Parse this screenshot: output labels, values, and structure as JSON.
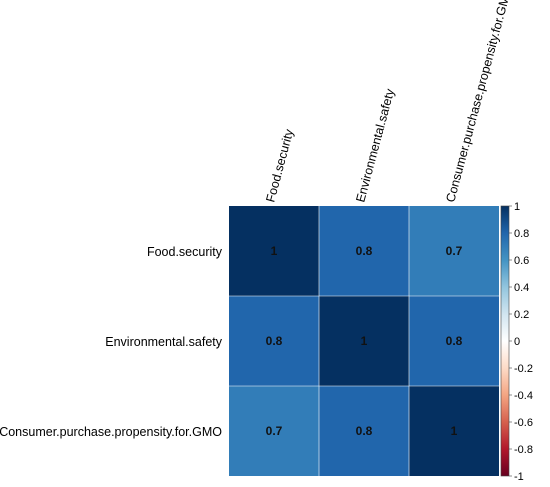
{
  "chart_data": {
    "type": "heatmap",
    "variables": [
      "Food.security",
      "Environmental.safety",
      "Consumer.purchase.propensity.for.GMO"
    ],
    "matrix": [
      [
        1,
        0.8,
        0.7
      ],
      [
        0.8,
        1,
        0.8
      ],
      [
        0.7,
        0.8,
        1
      ]
    ],
    "cell_labels": [
      [
        "1",
        "0.8",
        "0.7"
      ],
      [
        "0.8",
        "1",
        "0.8"
      ],
      [
        "0.7",
        "0.8",
        "1"
      ]
    ],
    "colorbar": {
      "range": [
        -1,
        1
      ],
      "ticks": [
        {
          "value": 1,
          "label": "1"
        },
        {
          "value": 0.8,
          "label": "0.8"
        },
        {
          "value": 0.6,
          "label": "0.6"
        },
        {
          "value": 0.4,
          "label": "0.4"
        },
        {
          "value": 0.2,
          "label": "0.2"
        },
        {
          "value": 0,
          "label": "0"
        },
        {
          "value": -0.2,
          "label": "-0.2"
        },
        {
          "value": -0.4,
          "label": "-0.4"
        },
        {
          "value": -0.6,
          "label": "-0.6"
        },
        {
          "value": -0.8,
          "label": "-0.8"
        },
        {
          "value": -1,
          "label": "-1"
        }
      ],
      "colors": [
        "#67001F",
        "#B2182B",
        "#D6604D",
        "#F4A582",
        "#FDDBC7",
        "#FFFFFF",
        "#D1E5F0",
        "#92C5DE",
        "#4393C3",
        "#2166AC",
        "#053061"
      ]
    },
    "title": "",
    "grid": false
  }
}
